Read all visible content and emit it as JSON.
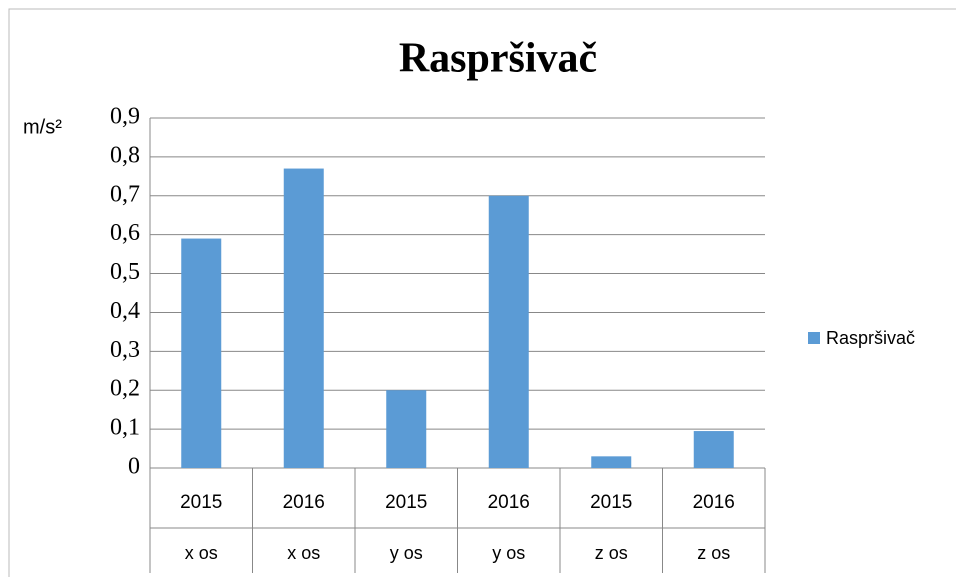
{
  "chart_data": {
    "type": "bar",
    "title": "Raspršivač",
    "y_label": "m/s²",
    "categories": [
      "2015",
      "2016",
      "2015",
      "2016",
      "2015",
      "2016"
    ],
    "category_groups": [
      "x os",
      "x os",
      "y os",
      "y os",
      "z os",
      "z os"
    ],
    "series": [
      {
        "name": "Raspršivač",
        "color": "#5b9bd5",
        "values": [
          0.59,
          0.77,
          0.2,
          0.7,
          0.03,
          0.095
        ]
      }
    ],
    "ylim": [
      0,
      0.9
    ],
    "yticks": [
      0,
      {
        "value": 0.1,
        "label": "0,1"
      },
      {
        "value": 0.2,
        "label": "0,2"
      },
      {
        "value": 0.3,
        "label": "0,3"
      },
      {
        "value": 0.4,
        "label": "0,4"
      },
      {
        "value": 0.5,
        "label": "0,5"
      },
      {
        "value": 0.6,
        "label": "0,6"
      },
      {
        "value": 0.7,
        "label": "0,7"
      },
      {
        "value": 0.8,
        "label": "0,8"
      },
      {
        "value": 0.9,
        "label": "0,9"
      }
    ],
    "grid": true,
    "legend": "right"
  }
}
